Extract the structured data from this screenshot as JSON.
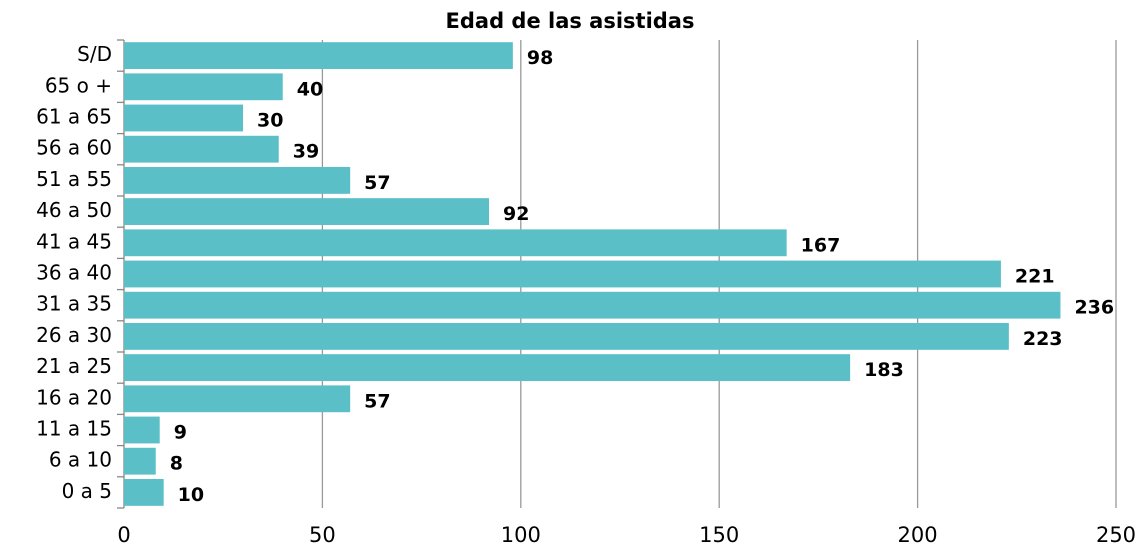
{
  "chart_data": {
    "type": "bar",
    "orientation": "horizontal",
    "title": "Edad de las asistidas",
    "categories": [
      "0 a 5",
      "6 a 10",
      "11 a 15",
      "16 a 20",
      "21 a 25",
      "26 a 30",
      "31 a 35",
      "36 a 40",
      "41 a 45",
      "46 a 50",
      "51 a 55",
      "56 a 60",
      "61 a 65",
      "65 o +",
      "S/D"
    ],
    "values": [
      10,
      8,
      9,
      57,
      183,
      223,
      236,
      221,
      167,
      92,
      57,
      39,
      30,
      40,
      98
    ],
    "color": "#5bbfc8",
    "xlim": [
      0,
      250
    ],
    "xticks": [
      0,
      50,
      100,
      150,
      200,
      250
    ],
    "grid": true
  }
}
